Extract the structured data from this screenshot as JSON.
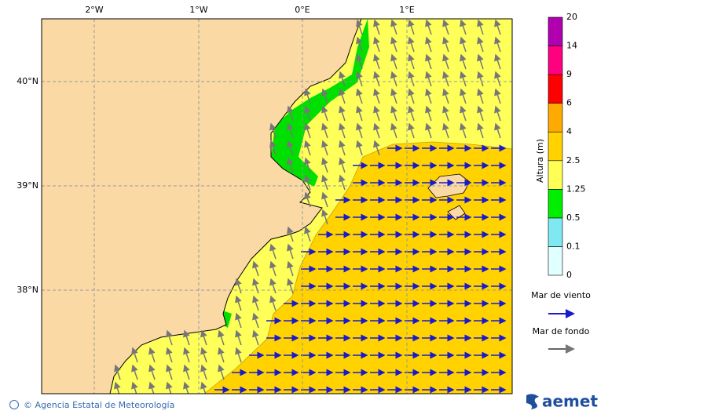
{
  "map": {
    "lon_labels": [
      "2°W",
      "1°W",
      "0°E",
      "1°E"
    ],
    "lat_labels": [
      "40°N",
      "39°N",
      "38°N"
    ],
    "colorbar": {
      "title": "Altura (m)",
      "levels": [
        0,
        0.1,
        0.5,
        1.25,
        2.5,
        4,
        6,
        9,
        14,
        20
      ]
    },
    "legend": [
      "Mar de viento",
      "Mar de fondo"
    ]
  },
  "footer": {
    "credit": "© Agencia Estatal de Meteorología",
    "logo": "aemet"
  }
}
